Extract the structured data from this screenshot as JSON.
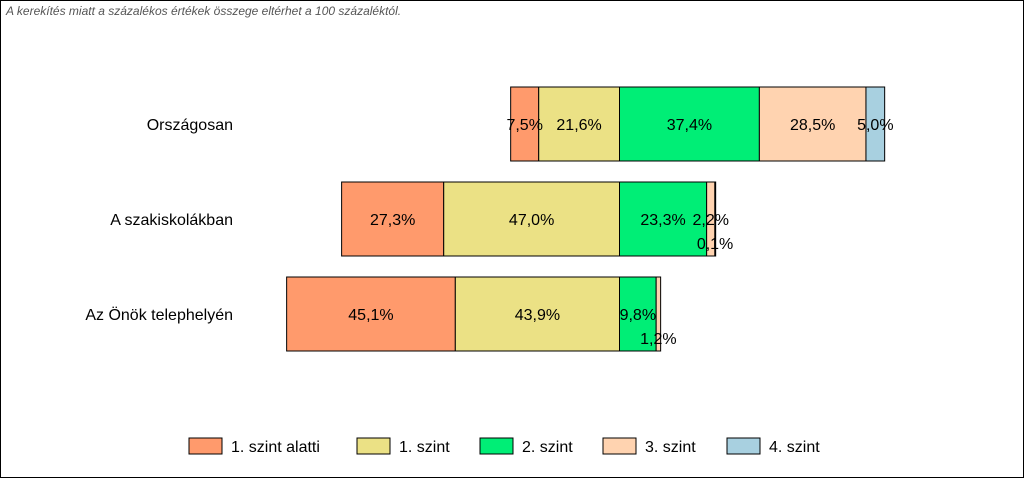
{
  "note": "A kerekítés miatt a  százalékos értékek összege eltérhet a 100 százaléktól.",
  "chart_data": {
    "type": "bar",
    "orientation": "horizontal",
    "stacked": true,
    "stack_alignment": "diverging",
    "categories": [
      "Országosan",
      "A szakiskolákban",
      "Az Önök telephelyén"
    ],
    "series": [
      {
        "name": "1. szint alatti",
        "values": [
          7.5,
          27.3,
          45.1
        ],
        "labels": [
          "7,5%",
          "27,3%",
          "45,1%"
        ],
        "color": "#FF9A6C"
      },
      {
        "name": "1. szint",
        "values": [
          21.6,
          47.0,
          43.9
        ],
        "labels": [
          "21,6%",
          "47,0%",
          "43,9%"
        ],
        "color": "#EBE185"
      },
      {
        "name": "2. szint",
        "values": [
          37.4,
          23.3,
          9.8
        ],
        "labels": [
          "37,4%",
          "23,3%",
          "9,8%"
        ],
        "color": "#00EE76"
      },
      {
        "name": "3. szint",
        "values": [
          28.5,
          2.2,
          1.2
        ],
        "labels": [
          "28,5%",
          "2,2%",
          "1,2%"
        ],
        "color": "#FFD3B0"
      },
      {
        "name": "4. szint",
        "values": [
          5.0,
          0.1,
          0.0
        ],
        "labels": [
          "5,0%",
          "0,1%",
          ""
        ],
        "color": "#A8D0E0"
      }
    ],
    "legend": "bottom",
    "grid": false
  }
}
